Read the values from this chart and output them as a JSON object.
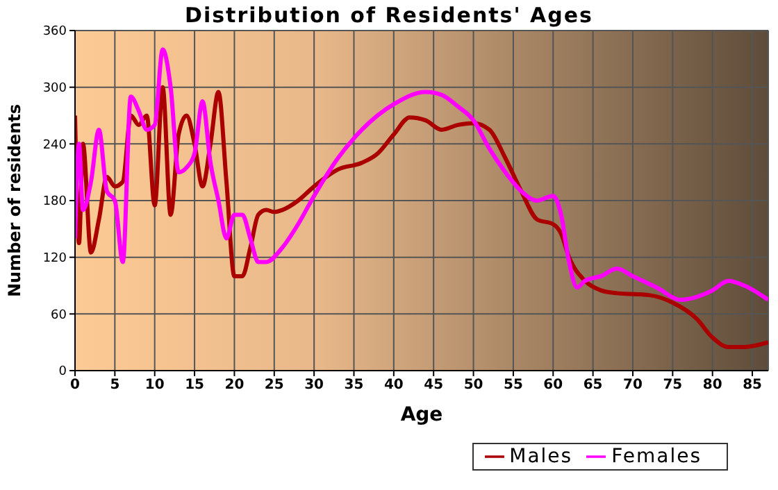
{
  "chart_data": {
    "type": "line",
    "title": "Distribution of Residents' Ages",
    "xlabel": "Age",
    "ylabel": "Number of residents",
    "xlim": [
      0,
      87
    ],
    "xticks": [
      0,
      5,
      10,
      15,
      20,
      25,
      30,
      35,
      40,
      45,
      50,
      55,
      60,
      65,
      70,
      75,
      80,
      85
    ],
    "ylim": [
      0,
      360
    ],
    "yticks": [
      0,
      60,
      120,
      180,
      240,
      300,
      360
    ],
    "grid": true,
    "legend": "bottom right",
    "series": [
      {
        "name": "Males",
        "color": "#aa0000",
        "x": [
          0,
          0.5,
          1,
          2,
          3,
          4,
          5,
          6,
          7,
          8,
          9,
          10,
          11,
          12,
          13,
          14,
          15,
          16,
          17,
          18,
          19,
          20,
          21,
          22,
          23,
          24,
          25,
          26,
          28,
          30,
          33,
          36,
          38,
          40,
          42,
          44,
          46,
          48,
          50,
          52,
          54,
          56,
          58,
          60,
          61,
          62,
          64,
          66,
          68,
          72,
          75,
          78,
          80,
          82,
          84,
          87
        ],
        "values": [
          270,
          135,
          240,
          125,
          160,
          205,
          195,
          200,
          270,
          260,
          270,
          175,
          300,
          165,
          250,
          270,
          240,
          195,
          240,
          295,
          200,
          100,
          100,
          130,
          165,
          170,
          168,
          170,
          180,
          195,
          213,
          220,
          230,
          250,
          268,
          265,
          255,
          260,
          262,
          255,
          225,
          190,
          160,
          155,
          145,
          120,
          95,
          85,
          82,
          80,
          72,
          55,
          35,
          25,
          25,
          30
        ]
      },
      {
        "name": "Females",
        "color": "#ff00ff",
        "x": [
          0,
          0.5,
          1,
          2,
          3,
          4,
          5,
          6,
          7,
          8,
          9,
          10,
          11,
          12,
          13,
          14,
          15,
          16,
          17,
          18,
          19,
          20,
          21,
          22,
          23,
          24,
          26,
          28,
          30,
          33,
          36,
          40,
          44,
          46,
          48,
          50,
          52,
          54,
          56,
          58,
          60,
          61,
          62,
          63,
          64,
          66,
          68,
          70,
          73,
          76,
          78,
          80,
          82,
          84,
          87
        ],
        "values": [
          140,
          240,
          170,
          200,
          255,
          190,
          180,
          115,
          290,
          275,
          255,
          260,
          340,
          300,
          210,
          215,
          230,
          285,
          220,
          180,
          140,
          165,
          165,
          140,
          115,
          115,
          130,
          155,
          185,
          225,
          255,
          282,
          295,
          292,
          280,
          265,
          235,
          210,
          190,
          180,
          185,
          165,
          115,
          88,
          95,
          100,
          108,
          100,
          88,
          75,
          78,
          85,
          95,
          90,
          75
        ]
      }
    ]
  }
}
